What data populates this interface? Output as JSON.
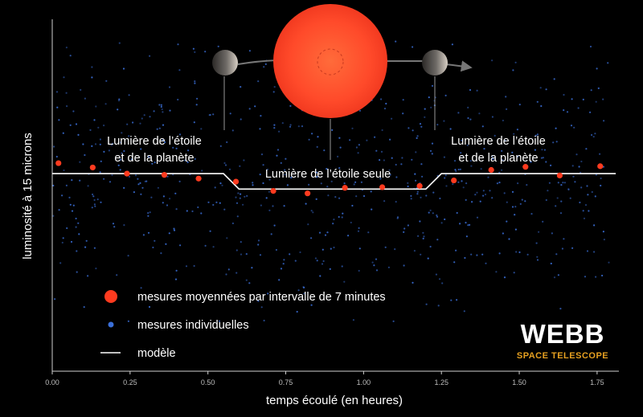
{
  "chart_data": {
    "type": "scatter",
    "xlabel": "temps écoulé (en heures)",
    "ylabel": "luminosité à 15 microns",
    "xlim": [
      0,
      1.82
    ],
    "ylim": [
      -3.2,
      2.5
    ],
    "x_ticks": [
      "0.00",
      "0.25",
      "0.50",
      "0.75",
      "1.00",
      "1.25",
      "1.50",
      "1.75"
    ],
    "x_tick_values": [
      0,
      0.25,
      0.5,
      0.75,
      1.0,
      1.25,
      1.5,
      1.75
    ],
    "grid": false,
    "series": [
      {
        "name": "mesures moyennées par intervalle de 7 minutes",
        "color": "#ff3b1f",
        "x": [
          0.02,
          0.13,
          0.24,
          0.36,
          0.47,
          0.59,
          0.71,
          0.82,
          0.94,
          1.06,
          1.18,
          1.29,
          1.41,
          1.52,
          1.63,
          1.76
        ],
        "y": [
          0.17,
          0.1,
          0.0,
          -0.02,
          -0.08,
          -0.13,
          -0.28,
          -0.32,
          -0.23,
          -0.22,
          -0.2,
          -0.11,
          0.06,
          0.11,
          -0.03,
          0.12
        ]
      },
      {
        "name": "mesures individuelles",
        "color": "#3a6fd8"
      },
      {
        "name": "modèle",
        "color": "#ffffff",
        "x": [
          0,
          0.55,
          0.6,
          1.2,
          1.25,
          1.81
        ],
        "y": [
          0,
          0,
          -0.25,
          -0.25,
          0,
          0
        ]
      }
    ],
    "annotations": [
      {
        "line1": "Lumière de l’étoile",
        "line2": "et de la planète"
      },
      {
        "line1": "Lumière de l’étoile seule",
        "line2": ""
      },
      {
        "line1": "Lumière de l’étoile",
        "line2": "et de la planète"
      }
    ],
    "legend_placement": "bottom-left"
  },
  "logo": {
    "main": "WEBB",
    "sub": "SPACE TELESCOPE"
  },
  "colors": {
    "star": "#ff4a2a",
    "planet": "#6e6a66",
    "orbit": "#777777"
  }
}
